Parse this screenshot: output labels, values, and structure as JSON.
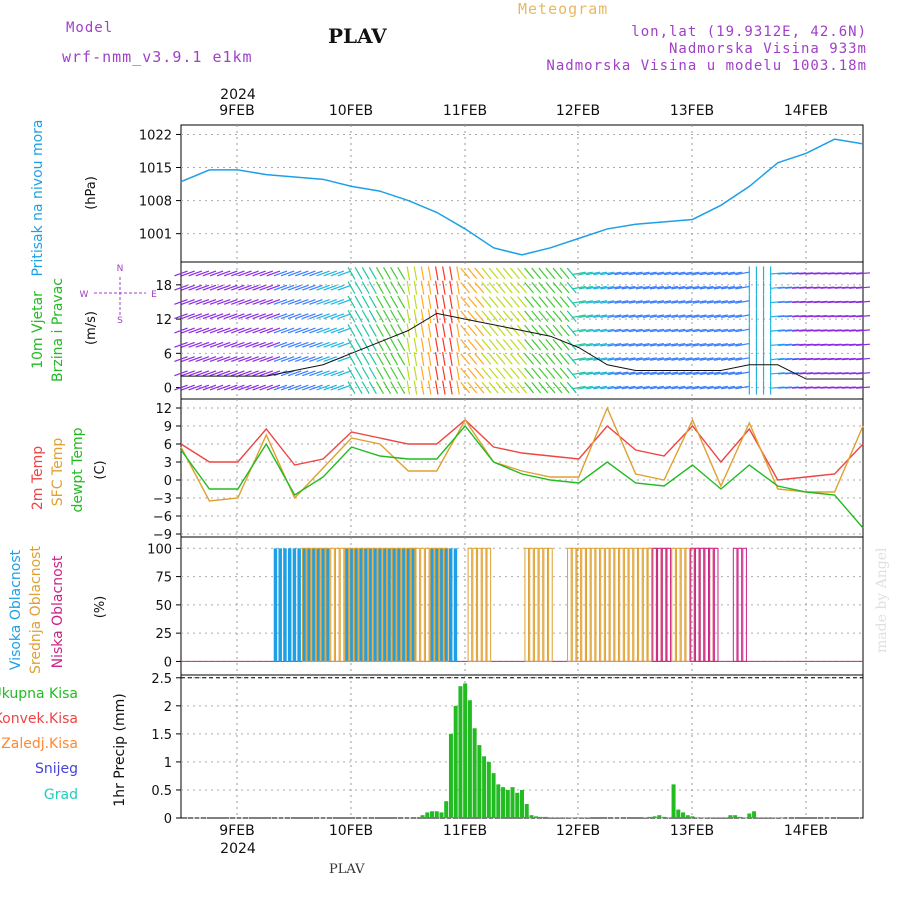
{
  "header": {
    "model_label": "Model",
    "model_name": "wrf-nmm_v3.9.1  e1km",
    "station": "PLAV",
    "title": "Meteogram",
    "coords": "lon,lat (19.9312E, 42.6N)",
    "elevation": "Nadmorska Visina 933m",
    "model_elevation": "Nadmorska Visina u modelu 1003.18m"
  },
  "footer": {
    "station": "PLAV",
    "signature": "made by Angel"
  },
  "time_axis": {
    "year": "2024",
    "day_labels": [
      "9FEB",
      "10FEB",
      "11FEB",
      "12FEB",
      "13FEB",
      "14FEB"
    ]
  },
  "panels": {
    "pressure": {
      "ylabel": "Pritisak na nivou mora",
      "unit": "(hPa)",
      "ticks": [
        "1022",
        "1015",
        "1008",
        "1001"
      ]
    },
    "wind": {
      "ylabel_line1": "10m Vjetar",
      "ylabel_line2": "Brzina i Pravac",
      "unit": "(m/s)",
      "ticks": [
        "18",
        "12",
        "6",
        "0"
      ],
      "compass": {
        "w": "W",
        "e": "E",
        "n": "N",
        "s": "S"
      }
    },
    "temperature": {
      "ylabel_2m": "2m Temp",
      "ylabel_sfc": "SFC Temp",
      "ylabel_dew": "dewpt Temp",
      "unit": "(C)",
      "ticks": [
        "12",
        "9",
        "6",
        "3",
        "0",
        "−3",
        "−6",
        "−9"
      ]
    },
    "cloud": {
      "ylabel_high": "Visoka Oblacnost",
      "ylabel_mid": "Srednja Oblacnost",
      "ylabel_low": "Niska Oblacnost",
      "unit": "(%)",
      "ticks": [
        "100",
        "75",
        "50",
        "25",
        "0"
      ]
    },
    "precip": {
      "legend": [
        "Ukupna Kisa",
        "Konvek.Kisa",
        "Zaledj.Kisa",
        "Snijeg",
        "Grad"
      ],
      "ylabel": "1hr Precip (mm)",
      "ticks": [
        "2.5",
        "2",
        "1.5",
        "1",
        "0.5",
        "0"
      ]
    }
  },
  "colors": {
    "pressure": "#1ea0e6",
    "t2m": "#ee4444",
    "sfc": "#e0a030",
    "dew": "#22bb22",
    "cloud_high": "#1ea0e6",
    "cloud_mid": "#e0a030",
    "cloud_low": "#cc2288",
    "rain": "#22bb22",
    "conv": "#ee4444",
    "frz": "#ff8833",
    "snow": "#4444dd",
    "grad": "#22ccbb",
    "purple": "#a040c8"
  },
  "chart_data": [
    {
      "type": "line",
      "name": "pressure",
      "ylabel": "Pritisak na nivou mora",
      "unit": "hPa",
      "ylim": [
        995,
        1024
      ],
      "x_hours": [
        0,
        6,
        12,
        18,
        24,
        30,
        36,
        42,
        48,
        54,
        60,
        66,
        72,
        78,
        84,
        90,
        96,
        102,
        108,
        114,
        120,
        126,
        132,
        138,
        144
      ],
      "values": [
        1012,
        1014.5,
        1014.5,
        1013.5,
        1013,
        1012.5,
        1011,
        1010,
        1008,
        1005.5,
        1002,
        998,
        996.5,
        998,
        1000,
        1002,
        1003,
        1003.5,
        1004,
        1007,
        1011,
        1016,
        1018,
        1021,
        1020
      ]
    },
    {
      "type": "line",
      "name": "wind_speed",
      "unit": "m/s",
      "ylim": [
        -2,
        22
      ],
      "x_hours": [
        0,
        6,
        12,
        18,
        24,
        30,
        36,
        42,
        48,
        54,
        60,
        66,
        72,
        78,
        84,
        90,
        96,
        102,
        108,
        114,
        120,
        126,
        132,
        138,
        144
      ],
      "values": [
        2,
        2,
        2,
        2,
        3,
        4,
        6,
        8,
        10,
        13,
        12,
        11,
        10,
        9,
        7,
        4,
        3,
        3,
        3,
        3,
        4,
        4,
        1.5,
        1.5,
        1.5
      ]
    },
    {
      "type": "line",
      "name": "temperature",
      "unit": "C",
      "ylim": [
        -9,
        13
      ],
      "x_hours": [
        0,
        6,
        12,
        18,
        24,
        30,
        36,
        42,
        48,
        54,
        60,
        66,
        72,
        78,
        84,
        90,
        96,
        102,
        108,
        114,
        120,
        126,
        132,
        138,
        144
      ],
      "series": [
        {
          "name": "2m Temp",
          "values": [
            6,
            3,
            3,
            8.5,
            2.5,
            3.5,
            8,
            7,
            6,
            6,
            10,
            5.5,
            4.5,
            4,
            3.5,
            9,
            5,
            4,
            9,
            3,
            8.5,
            0,
            0.5,
            1,
            6
          ]
        },
        {
          "name": "SFC Temp",
          "values": [
            5.5,
            -3.5,
            -3,
            7.5,
            -3,
            2,
            7,
            6,
            1.5,
            1.5,
            10,
            3,
            1.5,
            0.5,
            0.5,
            12,
            1,
            0,
            10,
            -1,
            9.5,
            -1.5,
            -2,
            -2,
            9
          ]
        },
        {
          "name": "dewpt Temp",
          "values": [
            5,
            -1.5,
            -1.5,
            6,
            -2.5,
            0.5,
            5.5,
            4,
            3.5,
            3.5,
            9,
            3,
            1,
            0,
            -0.5,
            3,
            -0.5,
            -1,
            2.5,
            -1.5,
            2.5,
            -1,
            -2,
            -2.5,
            -8
          ]
        }
      ]
    },
    {
      "type": "bar",
      "name": "cloud_cover",
      "unit": "%",
      "ylim": [
        0,
        100
      ],
      "segments": [
        {
          "name": "Visoka Oblacnost",
          "ranges": [
            [
              20,
              31
            ],
            [
              35,
              49
            ],
            [
              53,
              58
            ]
          ],
          "value": 100
        },
        {
          "name": "Srednja Oblacnost",
          "ranges": [
            [
              26,
              49
            ],
            [
              49,
              56
            ],
            [
              61,
              65
            ],
            [
              73,
              78
            ],
            [
              82,
              99
            ],
            [
              99,
              112
            ]
          ],
          "value": 100
        },
        {
          "name": "Niska Oblacnost",
          "ranges": [
            [
              100,
              103
            ],
            [
              108,
              113
            ],
            [
              117,
              119
            ]
          ],
          "value": 100
        }
      ]
    },
    {
      "type": "bar",
      "name": "precip_1hr",
      "ylabel": "1hr Precip (mm)",
      "unit": "mm",
      "ylim": [
        0,
        2.5
      ],
      "x_hours": [
        51,
        52,
        53,
        54,
        55,
        56,
        57,
        58,
        59,
        60,
        61,
        62,
        63,
        64,
        65,
        66,
        67,
        68,
        69,
        70,
        71,
        72,
        73,
        74,
        75,
        76,
        77,
        78,
        79,
        80,
        81,
        82,
        83,
        84,
        85,
        86,
        98,
        99,
        100,
        101,
        102,
        103,
        104,
        105,
        106,
        107,
        108,
        109,
        110,
        111,
        112,
        113,
        114,
        115,
        116,
        117,
        118,
        119,
        120,
        121,
        122,
        123,
        124,
        125,
        126,
        127
      ],
      "values": [
        0.05,
        0.1,
        0.12,
        0.12,
        0.1,
        0.3,
        1.5,
        2.0,
        2.35,
        2.4,
        2.1,
        1.6,
        1.3,
        1.1,
        1.0,
        0.8,
        0.6,
        0.55,
        0.5,
        0.55,
        0.45,
        0.5,
        0.25,
        0.05,
        0.03,
        0.02,
        0.02,
        0.01,
        0.01,
        0.01,
        0.01,
        0.01,
        0.01,
        0.01,
        0.01,
        0.01,
        0.01,
        0.02,
        0.03,
        0.05,
        0.02,
        0.01,
        0.6,
        0.15,
        0.1,
        0.05,
        0.03,
        0.01,
        0.01,
        0.01,
        0.01,
        0.01,
        0.01,
        0.01,
        0.05,
        0.05,
        0.02,
        0.01,
        0.08,
        0.12,
        0.01,
        0.01,
        0.01,
        0.01,
        0.01,
        0.01
      ]
    }
  ]
}
